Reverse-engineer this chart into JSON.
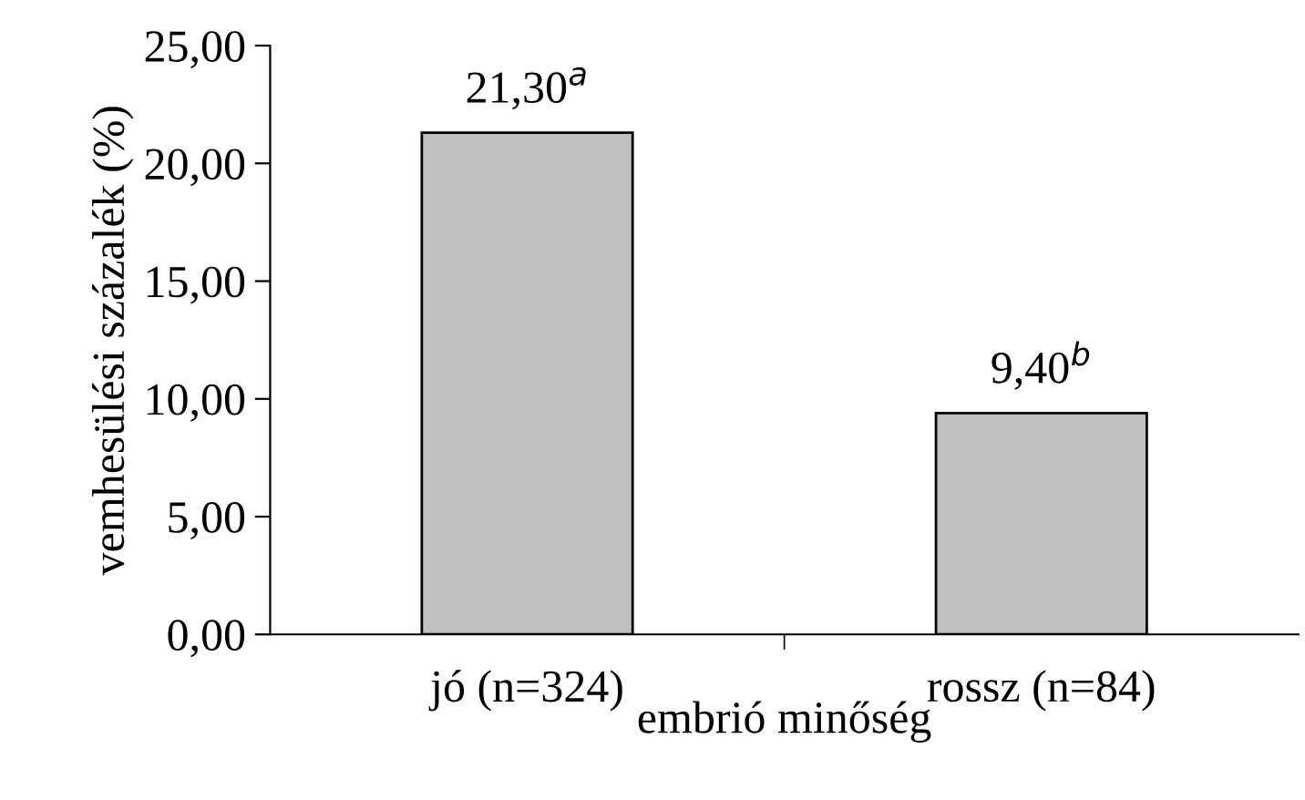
{
  "chart_data": {
    "type": "bar",
    "xlabel": "embrió minőség",
    "ylabel": "vemhesülési százalék (%)",
    "categories": [
      "jó (n=324)",
      "rossz (n=84)"
    ],
    "values": [
      21.3,
      9.4
    ],
    "value_labels": [
      "21,30$^{a}$",
      "9,40$^{b}$"
    ],
    "color": "#c0c0c0",
    "ylim": [
      0,
      25
    ],
    "yticks": [
      {
        "value": 0,
        "label": "0,00"
      },
      {
        "value": 5,
        "label": "5,00"
      },
      {
        "value": 10,
        "label": "10,00"
      },
      {
        "value": 15,
        "label": "15,00"
      },
      {
        "value": 20,
        "label": "20,00"
      },
      {
        "value": 25,
        "label": "25,00"
      }
    ],
    "grid": false,
    "legend": false
  }
}
